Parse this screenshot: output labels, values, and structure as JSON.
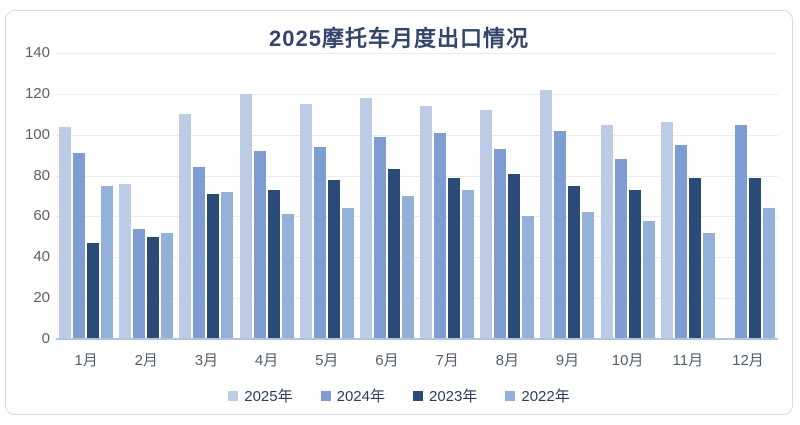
{
  "chart_data": {
    "type": "bar",
    "title": "2025摩托车月度出口情况",
    "categories": [
      "1月",
      "2月",
      "3月",
      "4月",
      "5月",
      "6月",
      "7月",
      "8月",
      "9月",
      "10月",
      "11月",
      "12月"
    ],
    "series": [
      {
        "name": "2025年",
        "color": "#bccbe6",
        "values": [
          104,
          76,
          110,
          120,
          115,
          118,
          114,
          112,
          122,
          105,
          106,
          null
        ]
      },
      {
        "name": "2024年",
        "color": "#7e9ed3",
        "values": [
          91,
          54,
          84,
          92,
          94,
          99,
          101,
          93,
          102,
          88,
          95,
          105
        ]
      },
      {
        "name": "2023年",
        "color": "#2a4a78",
        "values": [
          47,
          50,
          71,
          73,
          78,
          83,
          79,
          81,
          75,
          73,
          79,
          79
        ]
      },
      {
        "name": "2022年",
        "color": "#94b1d9",
        "values": [
          75,
          52,
          72,
          61,
          64,
          70,
          73,
          60,
          62,
          58,
          52,
          64
        ]
      }
    ],
    "xlabel": "",
    "ylabel": "",
    "ylim": [
      0,
      140
    ],
    "ytick_step": 20,
    "yticks": [
      0,
      20,
      40,
      60,
      80,
      100,
      120,
      140
    ],
    "grid": true,
    "legend_position": "bottom",
    "style": {
      "grid_color": "#ededf1",
      "axis_line_color": "#b0c5dd",
      "tick_label_color": "#5b626e",
      "title_color": "#34456b",
      "legend_text_color": "#2f3d5c",
      "card_border_color": "#d8dce2",
      "background": "#ffffff"
    }
  }
}
